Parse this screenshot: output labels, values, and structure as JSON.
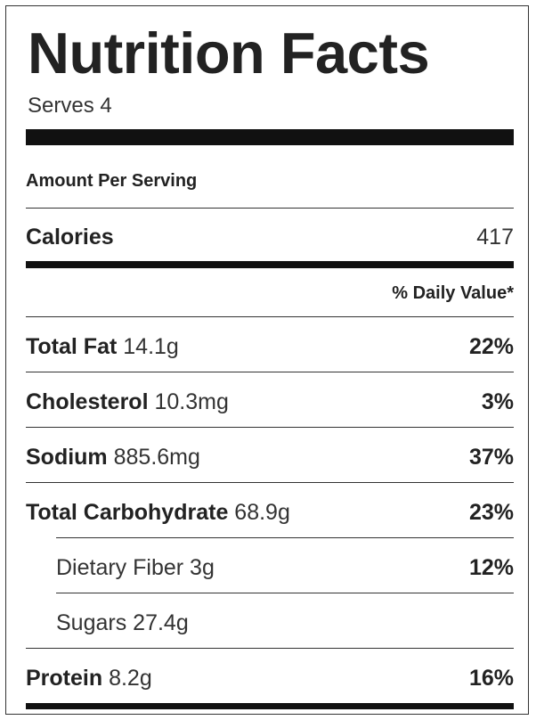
{
  "label": {
    "title": "Nutrition Facts",
    "serves": "Serves 4",
    "amount_per_serving": "Amount Per Serving",
    "calories": {
      "name": "Calories",
      "value": "417"
    },
    "daily_value_header": "% Daily Value*",
    "nutrients": [
      {
        "name": "Total Fat",
        "amount": "14.1g",
        "percent": "22%"
      },
      {
        "name": "Cholesterol",
        "amount": "10.3mg",
        "percent": "3%"
      },
      {
        "name": "Sodium",
        "amount": "885.6mg",
        "percent": "37%"
      },
      {
        "name": "Total Carbohydrate",
        "amount": "68.9g",
        "percent": "23%"
      },
      {
        "name": "Dietary Fiber",
        "amount": "3g",
        "percent": "12%"
      },
      {
        "name": "Sugars",
        "amount": "27.4g",
        "percent": ""
      },
      {
        "name": "Protein",
        "amount": "8.2g",
        "percent": "16%"
      }
    ]
  }
}
